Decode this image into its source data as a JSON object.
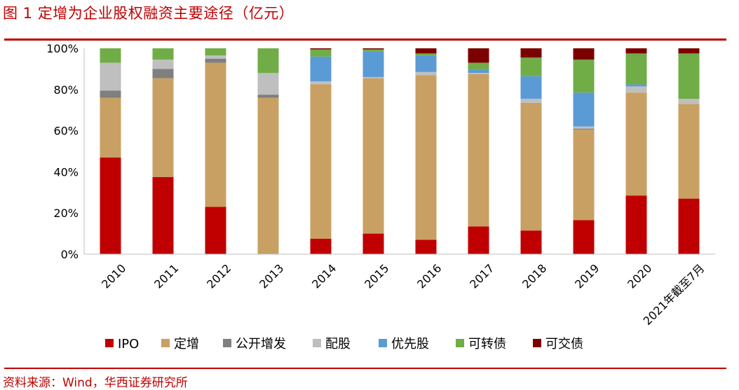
{
  "figure": {
    "title": "图 1  定增为企业股权融资主要途径（亿元）",
    "source": "资料来源：Wind，华西证券研究所"
  },
  "chart_data": {
    "type": "bar",
    "stacked": true,
    "title": "",
    "xlabel": "",
    "ylabel": "",
    "ylim": [
      0,
      100
    ],
    "y_ticks": [
      "0%",
      "20%",
      "40%",
      "60%",
      "80%",
      "100%"
    ],
    "y_tick_values": [
      0,
      20,
      40,
      60,
      80,
      100
    ],
    "grid": false,
    "legend": "bottom",
    "categories": [
      "2010",
      "2011",
      "2012",
      "2013",
      "2014",
      "2015",
      "2016",
      "2017",
      "2018",
      "2019",
      "2020",
      "2021年截至7月"
    ],
    "series": [
      {
        "name": "IPO",
        "color": "#c00000",
        "values": [
          47,
          37.5,
          23,
          0,
          7.5,
          10,
          7,
          13.5,
          11.5,
          16.5,
          28.5,
          27
        ]
      },
      {
        "name": "定增",
        "color": "#c9a063",
        "values": [
          29,
          48,
          70,
          76,
          75,
          75.5,
          80,
          74,
          62,
          44,
          50,
          46
        ]
      },
      {
        "name": "公开增发",
        "color": "#7f7f7f",
        "values": [
          3.5,
          4.5,
          2,
          1.5,
          0,
          0,
          0,
          0,
          0,
          0.5,
          0,
          0
        ]
      },
      {
        "name": "配股",
        "color": "#bfbfbf",
        "values": [
          13.5,
          4.5,
          1.5,
          10.5,
          1.5,
          0.5,
          1.5,
          0.5,
          2,
          1,
          3,
          2.5
        ]
      },
      {
        "name": "优先股",
        "color": "#5b9bd5",
        "values": [
          0,
          0,
          0,
          0,
          12,
          12.5,
          8,
          1.5,
          11,
          16.5,
          1,
          0
        ]
      },
      {
        "name": "可转债",
        "color": "#70ad47",
        "values": [
          7,
          5.5,
          3.5,
          12,
          3.5,
          1,
          1,
          3.5,
          9,
          16,
          15,
          22
        ]
      },
      {
        "name": "可交债",
        "color": "#7b0000",
        "values": [
          0,
          0,
          0,
          0,
          0.5,
          0.5,
          2.5,
          7,
          4.5,
          5.5,
          2.5,
          2.5
        ]
      }
    ]
  }
}
